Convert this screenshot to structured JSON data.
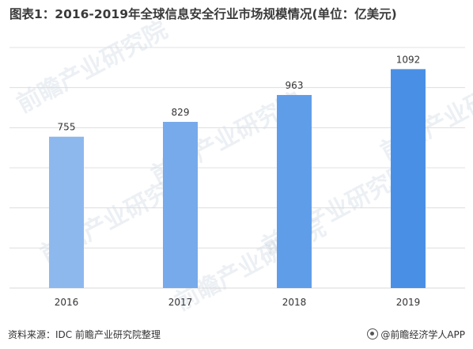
{
  "footer": {
    "source": "资料来源：IDC 前瞻产业研究院整理",
    "brand": "@前瞻经济学人APP"
  },
  "watermark_text": "前瞻产业研究院",
  "colors": {
    "bar_start": "#8db8ee",
    "bar_end": "#4a8fe6",
    "grid": "#d9d9d9",
    "label": "#333333"
  },
  "chart_data": {
    "type": "bar",
    "title": "图表1：2016-2019年全球信息安全行业市场规模情况(单位：亿美元)",
    "categories": [
      "2016",
      "2017",
      "2018",
      "2019"
    ],
    "values": [
      755,
      829,
      963,
      1092
    ],
    "ylim": [
      0,
      1200
    ],
    "grid": true,
    "xlabel": "",
    "ylabel": ""
  }
}
